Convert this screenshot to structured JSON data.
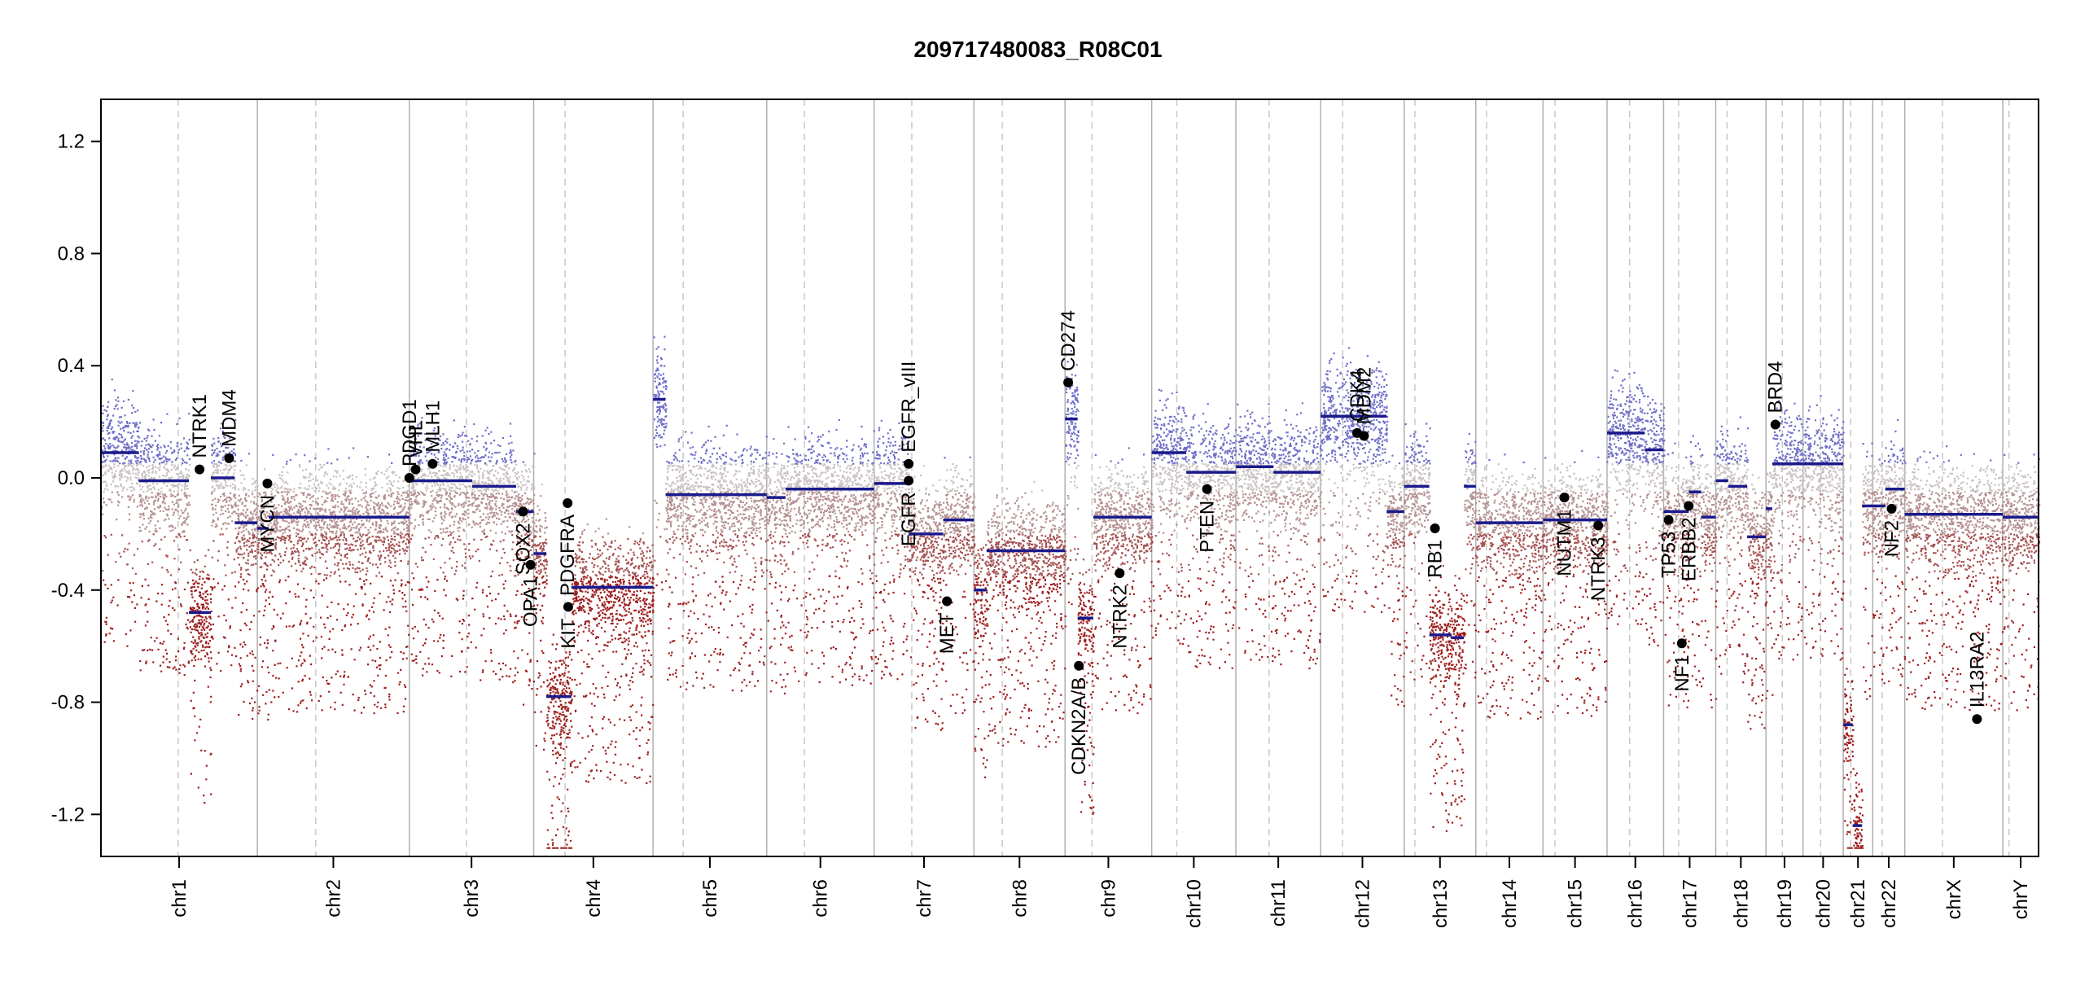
{
  "chart_data": {
    "type": "scatter",
    "title": "209717480083_R08C01",
    "xlabel": "",
    "ylabel": "",
    "ylim": [
      -1.35,
      1.35
    ],
    "y_ticks": [
      1.2,
      0.8,
      0.4,
      0.0,
      -0.4,
      -0.8,
      -1.2
    ],
    "y_tick_labels": [
      "1.2",
      "0.8",
      "0.4",
      "0.0",
      "-0.4",
      "-0.8",
      "-1.2"
    ],
    "chromosome_lengths_mb": [
      249,
      242,
      198,
      190,
      181,
      171,
      159,
      145,
      138,
      134,
      135,
      133,
      114,
      107,
      102,
      90,
      83,
      80,
      59,
      64,
      47,
      51,
      156,
      57
    ],
    "chromosomes": [
      "chr1",
      "chr2",
      "chr3",
      "chr4",
      "chr5",
      "chr6",
      "chr7",
      "chr8",
      "chr9",
      "chr10",
      "chr11",
      "chr12",
      "chr13",
      "chr14",
      "chr15",
      "chr16",
      "chr17",
      "chr18",
      "chr19",
      "chr20",
      "chr21",
      "chr22",
      "chrX",
      "chrY"
    ],
    "centromeres_mb": [
      123,
      93,
      91,
      50,
      48,
      60,
      60,
      45,
      43,
      40,
      53,
      35,
      17,
      17,
      19,
      36,
      24,
      18,
      26,
      28,
      12,
      15,
      60,
      10
    ],
    "segments": [
      {
        "chr": "chr1",
        "start": 0,
        "end": 60,
        "value": 0.09
      },
      {
        "chr": "chr1",
        "start": 60,
        "end": 140,
        "value": -0.01
      },
      {
        "chr": "chr1",
        "start": 140,
        "end": 175,
        "value": -0.48
      },
      {
        "chr": "chr1",
        "start": 175,
        "end": 213,
        "value": 0.0
      },
      {
        "chr": "chr1",
        "start": 213,
        "end": 249,
        "value": -0.16
      },
      {
        "chr": "chr2",
        "start": 0,
        "end": 18,
        "value": -0.18
      },
      {
        "chr": "chr2",
        "start": 18,
        "end": 242,
        "value": -0.14
      },
      {
        "chr": "chr3",
        "start": 0,
        "end": 100,
        "value": -0.01
      },
      {
        "chr": "chr3",
        "start": 100,
        "end": 170,
        "value": -0.03
      },
      {
        "chr": "chr3",
        "start": 170,
        "end": 198,
        "value": -0.12
      },
      {
        "chr": "chr4",
        "start": 0,
        "end": 20,
        "value": -0.27
      },
      {
        "chr": "chr4",
        "start": 20,
        "end": 60,
        "value": -0.78
      },
      {
        "chr": "chr4",
        "start": 60,
        "end": 190,
        "value": -0.39
      },
      {
        "chr": "chr5",
        "start": 0,
        "end": 20,
        "value": 0.28
      },
      {
        "chr": "chr5",
        "start": 20,
        "end": 181,
        "value": -0.06
      },
      {
        "chr": "chr6",
        "start": 0,
        "end": 30,
        "value": -0.07
      },
      {
        "chr": "chr6",
        "start": 30,
        "end": 171,
        "value": -0.04
      },
      {
        "chr": "chr7",
        "start": 0,
        "end": 55,
        "value": -0.02
      },
      {
        "chr": "chr7",
        "start": 55,
        "end": 110,
        "value": -0.2
      },
      {
        "chr": "chr7",
        "start": 110,
        "end": 159,
        "value": -0.15
      },
      {
        "chr": "chr8",
        "start": 0,
        "end": 20,
        "value": -0.4
      },
      {
        "chr": "chr8",
        "start": 20,
        "end": 145,
        "value": -0.26
      },
      {
        "chr": "chr9",
        "start": 0,
        "end": 20,
        "value": 0.21
      },
      {
        "chr": "chr9",
        "start": 20,
        "end": 45,
        "value": -0.5
      },
      {
        "chr": "chr9",
        "start": 45,
        "end": 138,
        "value": -0.14
      },
      {
        "chr": "chr10",
        "start": 0,
        "end": 55,
        "value": 0.09
      },
      {
        "chr": "chr10",
        "start": 55,
        "end": 134,
        "value": 0.02
      },
      {
        "chr": "chr11",
        "start": 0,
        "end": 60,
        "value": 0.04
      },
      {
        "chr": "chr11",
        "start": 60,
        "end": 135,
        "value": 0.02
      },
      {
        "chr": "chr12",
        "start": 0,
        "end": 105,
        "value": 0.22
      },
      {
        "chr": "chr12",
        "start": 105,
        "end": 133,
        "value": -0.12
      },
      {
        "chr": "chr13",
        "start": 0,
        "end": 40,
        "value": -0.03
      },
      {
        "chr": "chr13",
        "start": 40,
        "end": 75,
        "value": -0.56
      },
      {
        "chr": "chr13",
        "start": 75,
        "end": 95,
        "value": -0.57
      },
      {
        "chr": "chr13",
        "start": 95,
        "end": 114,
        "value": -0.03
      },
      {
        "chr": "chr14",
        "start": 0,
        "end": 107,
        "value": -0.16
      },
      {
        "chr": "chr15",
        "start": 0,
        "end": 102,
        "value": -0.15
      },
      {
        "chr": "chr16",
        "start": 0,
        "end": 60,
        "value": 0.16
      },
      {
        "chr": "chr16",
        "start": 60,
        "end": 90,
        "value": 0.1
      },
      {
        "chr": "chr17",
        "start": 0,
        "end": 40,
        "value": -0.12
      },
      {
        "chr": "chr17",
        "start": 40,
        "end": 60,
        "value": -0.05
      },
      {
        "chr": "chr17",
        "start": 60,
        "end": 83,
        "value": -0.14
      },
      {
        "chr": "chr18",
        "start": 0,
        "end": 20,
        "value": -0.01
      },
      {
        "chr": "chr18",
        "start": 20,
        "end": 50,
        "value": -0.03
      },
      {
        "chr": "chr18",
        "start": 50,
        "end": 80,
        "value": -0.21
      },
      {
        "chr": "chr19",
        "start": 0,
        "end": 10,
        "value": -0.11
      },
      {
        "chr": "chr19",
        "start": 10,
        "end": 59,
        "value": 0.05
      },
      {
        "chr": "chr20",
        "start": 0,
        "end": 64,
        "value": 0.05
      },
      {
        "chr": "chr21",
        "start": 0,
        "end": 15,
        "value": -0.88
      },
      {
        "chr": "chr21",
        "start": 15,
        "end": 30,
        "value": -1.24
      },
      {
        "chr": "chr21",
        "start": 30,
        "end": 47,
        "value": -0.1
      },
      {
        "chr": "chr22",
        "start": 0,
        "end": 20,
        "value": -0.1
      },
      {
        "chr": "chr22",
        "start": 20,
        "end": 51,
        "value": -0.04
      },
      {
        "chr": "chrX",
        "start": 0,
        "end": 156,
        "value": -0.13
      },
      {
        "chr": "chrY",
        "start": 0,
        "end": 57,
        "value": -0.14
      }
    ],
    "genes": [
      {
        "name": "NTRK1",
        "chr": "chr1",
        "pos": 157,
        "value": 0.03,
        "label_side": "above"
      },
      {
        "name": "MDM4",
        "chr": "chr1",
        "pos": 204,
        "value": 0.07,
        "label_side": "above"
      },
      {
        "name": "MYCN",
        "chr": "chr2",
        "pos": 16,
        "value": -0.02,
        "label_side": "below"
      },
      {
        "name": "PDGD1",
        "chr": "chr3",
        "pos": 0,
        "value": 0.0,
        "label_side": "above"
      },
      {
        "name": "VHL",
        "chr": "chr3",
        "pos": 10,
        "value": 0.03,
        "label_side": "above"
      },
      {
        "name": "MLH1",
        "chr": "chr3",
        "pos": 37,
        "value": 0.05,
        "label_side": "above"
      },
      {
        "name": "SOX2",
        "chr": "chr3",
        "pos": 181,
        "value": -0.12,
        "label_side": "below"
      },
      {
        "name": "OPA1",
        "chr": "chr3",
        "pos": 193,
        "value": -0.31,
        "label_side": "below"
      },
      {
        "name": "KIT",
        "chr": "chr4",
        "pos": 55,
        "value": -0.46,
        "label_side": "below"
      },
      {
        "name": "PDGFRA",
        "chr": "chr4",
        "pos": 54,
        "value": -0.09,
        "label_side": "below"
      },
      {
        "name": "EGFR_vIII",
        "chr": "chr7",
        "pos": 55,
        "value": 0.05,
        "label_side": "above"
      },
      {
        "name": "EGFR",
        "chr": "chr7",
        "pos": 55,
        "value": -0.01,
        "label_side": "below"
      },
      {
        "name": "MET",
        "chr": "chr7",
        "pos": 116,
        "value": -0.44,
        "label_side": "below"
      },
      {
        "name": "CD274",
        "chr": "chr9",
        "pos": 5,
        "value": 0.34,
        "label_side": "above"
      },
      {
        "name": "CDKN2A/B",
        "chr": "chr9",
        "pos": 22,
        "value": -0.67,
        "label_side": "below"
      },
      {
        "name": "NTRK2",
        "chr": "chr9",
        "pos": 87,
        "value": -0.34,
        "label_side": "below"
      },
      {
        "name": "PTEN",
        "chr": "chr10",
        "pos": 88,
        "value": -0.04,
        "label_side": "below"
      },
      {
        "name": "CDK4",
        "chr": "chr12",
        "pos": 58,
        "value": 0.16,
        "label_side": "above"
      },
      {
        "name": "MDM2",
        "chr": "chr12",
        "pos": 69,
        "value": 0.15,
        "label_side": "above"
      },
      {
        "name": "RB1",
        "chr": "chr13",
        "pos": 49,
        "value": -0.18,
        "label_side": "below"
      },
      {
        "name": "NUTM1",
        "chr": "chr15",
        "pos": 34,
        "value": -0.07,
        "label_side": "below"
      },
      {
        "name": "NTRK3",
        "chr": "chr15",
        "pos": 88,
        "value": -0.17,
        "label_side": "below"
      },
      {
        "name": "TP53",
        "chr": "chr17",
        "pos": 8,
        "value": -0.15,
        "label_side": "below"
      },
      {
        "name": "NF1",
        "chr": "chr17",
        "pos": 29,
        "value": -0.59,
        "label_side": "below"
      },
      {
        "name": "ERBB2",
        "chr": "chr17",
        "pos": 40,
        "value": -0.1,
        "label_side": "below"
      },
      {
        "name": "BRD4",
        "chr": "chr19",
        "pos": 15,
        "value": 0.19,
        "label_side": "above"
      },
      {
        "name": "NF2",
        "chr": "chr22",
        "pos": 30,
        "value": -0.11,
        "label_side": "below"
      },
      {
        "name": "IL13RA2",
        "chr": "chrX",
        "pos": 115,
        "value": -0.86,
        "label_side": "above"
      }
    ]
  }
}
